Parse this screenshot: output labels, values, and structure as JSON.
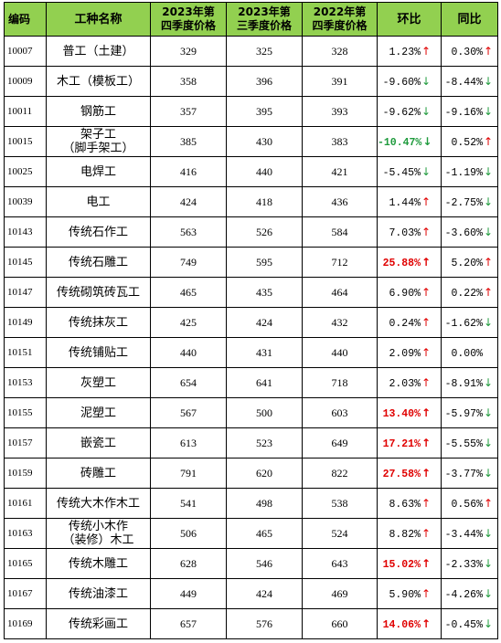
{
  "headers": {
    "code": "编码",
    "name": "工种名称",
    "q4_2023": [
      "2023年第",
      "四季度价格"
    ],
    "q3_2023": [
      "2023年第",
      "三季度价格"
    ],
    "q4_2022": [
      "2022年第",
      "四季度价格"
    ],
    "qoq": "环比",
    "yoy": "同比"
  },
  "colors": {
    "header_bg": "#92d050",
    "up": "#e00000",
    "down": "#1e9a3c"
  },
  "rows": [
    {
      "code": "10007",
      "name": "普工（土建）",
      "q4_2023": "329",
      "q3_2023": "325",
      "q4_2022": "328",
      "qoq": "1.23%",
      "qoq_dir": "up",
      "qoq_hl": "",
      "yoy": "0.30%",
      "yoy_dir": "up"
    },
    {
      "code": "10009",
      "name": "木工（模板工）",
      "q4_2023": "358",
      "q3_2023": "396",
      "q4_2022": "391",
      "qoq": "-9.60%",
      "qoq_dir": "down",
      "qoq_hl": "",
      "yoy": "-8.44%",
      "yoy_dir": "down"
    },
    {
      "code": "10011",
      "name": "钢筋工",
      "q4_2023": "357",
      "q3_2023": "395",
      "q4_2022": "393",
      "qoq": "-9.62%",
      "qoq_dir": "down",
      "qoq_hl": "",
      "yoy": "-9.16%",
      "yoy_dir": "down"
    },
    {
      "code": "10015",
      "name": "架子工\n（脚手架工）",
      "q4_2023": "385",
      "q3_2023": "430",
      "q4_2022": "383",
      "qoq": "-10.47%",
      "qoq_dir": "down",
      "qoq_hl": "green",
      "yoy": "0.52%",
      "yoy_dir": "up"
    },
    {
      "code": "10025",
      "name": "电焊工",
      "q4_2023": "416",
      "q3_2023": "440",
      "q4_2022": "421",
      "qoq": "-5.45%",
      "qoq_dir": "down",
      "qoq_hl": "",
      "yoy": "-1.19%",
      "yoy_dir": "down"
    },
    {
      "code": "10039",
      "name": "电工",
      "q4_2023": "424",
      "q3_2023": "418",
      "q4_2022": "436",
      "qoq": "1.44%",
      "qoq_dir": "up",
      "qoq_hl": "",
      "yoy": "-2.75%",
      "yoy_dir": "down"
    },
    {
      "code": "10143",
      "name": "传统石作工",
      "q4_2023": "563",
      "q3_2023": "526",
      "q4_2022": "584",
      "qoq": "7.03%",
      "qoq_dir": "up",
      "qoq_hl": "",
      "yoy": "-3.60%",
      "yoy_dir": "down"
    },
    {
      "code": "10145",
      "name": "传统石雕工",
      "q4_2023": "749",
      "q3_2023": "595",
      "q4_2022": "712",
      "qoq": "25.88%",
      "qoq_dir": "up",
      "qoq_hl": "red",
      "yoy": "5.20%",
      "yoy_dir": "up"
    },
    {
      "code": "10147",
      "name": "传统砌筑砖瓦工",
      "q4_2023": "465",
      "q3_2023": "435",
      "q4_2022": "464",
      "qoq": "6.90%",
      "qoq_dir": "up",
      "qoq_hl": "",
      "yoy": "0.22%",
      "yoy_dir": "up"
    },
    {
      "code": "10149",
      "name": "传统抹灰工",
      "q4_2023": "425",
      "q3_2023": "424",
      "q4_2022": "432",
      "qoq": "0.24%",
      "qoq_dir": "up",
      "qoq_hl": "",
      "yoy": "-1.62%",
      "yoy_dir": "down"
    },
    {
      "code": "10151",
      "name": "传统铺贴工",
      "q4_2023": "440",
      "q3_2023": "431",
      "q4_2022": "440",
      "qoq": "2.09%",
      "qoq_dir": "up",
      "qoq_hl": "",
      "yoy": "0.00%",
      "yoy_dir": "none"
    },
    {
      "code": "10153",
      "name": "灰塑工",
      "q4_2023": "654",
      "q3_2023": "641",
      "q4_2022": "718",
      "qoq": "2.03%",
      "qoq_dir": "up",
      "qoq_hl": "",
      "yoy": "-8.91%",
      "yoy_dir": "down"
    },
    {
      "code": "10155",
      "name": "泥塑工",
      "q4_2023": "567",
      "q3_2023": "500",
      "q4_2022": "603",
      "qoq": "13.40%",
      "qoq_dir": "up",
      "qoq_hl": "red",
      "yoy": "-5.97%",
      "yoy_dir": "down"
    },
    {
      "code": "10157",
      "name": "嵌瓷工",
      "q4_2023": "613",
      "q3_2023": "523",
      "q4_2022": "649",
      "qoq": "17.21%",
      "qoq_dir": "up",
      "qoq_hl": "red",
      "yoy": "-5.55%",
      "yoy_dir": "down"
    },
    {
      "code": "10159",
      "name": "砖雕工",
      "q4_2023": "791",
      "q3_2023": "620",
      "q4_2022": "822",
      "qoq": "27.58%",
      "qoq_dir": "up",
      "qoq_hl": "red",
      "yoy": "-3.77%",
      "yoy_dir": "down"
    },
    {
      "code": "10161",
      "name": "传统大木作木工",
      "q4_2023": "541",
      "q3_2023": "498",
      "q4_2022": "538",
      "qoq": "8.63%",
      "qoq_dir": "up",
      "qoq_hl": "",
      "yoy": "0.56%",
      "yoy_dir": "up"
    },
    {
      "code": "10163",
      "name": "传统小木作\n（装修）木工",
      "q4_2023": "506",
      "q3_2023": "465",
      "q4_2022": "524",
      "qoq": "8.82%",
      "qoq_dir": "up",
      "qoq_hl": "",
      "yoy": "-3.44%",
      "yoy_dir": "down"
    },
    {
      "code": "10165",
      "name": "传统木雕工",
      "q4_2023": "628",
      "q3_2023": "546",
      "q4_2022": "643",
      "qoq": "15.02%",
      "qoq_dir": "up",
      "qoq_hl": "red",
      "yoy": "-2.33%",
      "yoy_dir": "down"
    },
    {
      "code": "10167",
      "name": "传统油漆工",
      "q4_2023": "449",
      "q3_2023": "424",
      "q4_2022": "469",
      "qoq": "5.90%",
      "qoq_dir": "up",
      "qoq_hl": "",
      "yoy": "-4.26%",
      "yoy_dir": "down"
    },
    {
      "code": "10169",
      "name": "传统彩画工",
      "q4_2023": "657",
      "q3_2023": "576",
      "q4_2022": "660",
      "qoq": "14.06%",
      "qoq_dir": "up",
      "qoq_hl": "red",
      "yoy": "-0.45%",
      "yoy_dir": "down"
    }
  ]
}
